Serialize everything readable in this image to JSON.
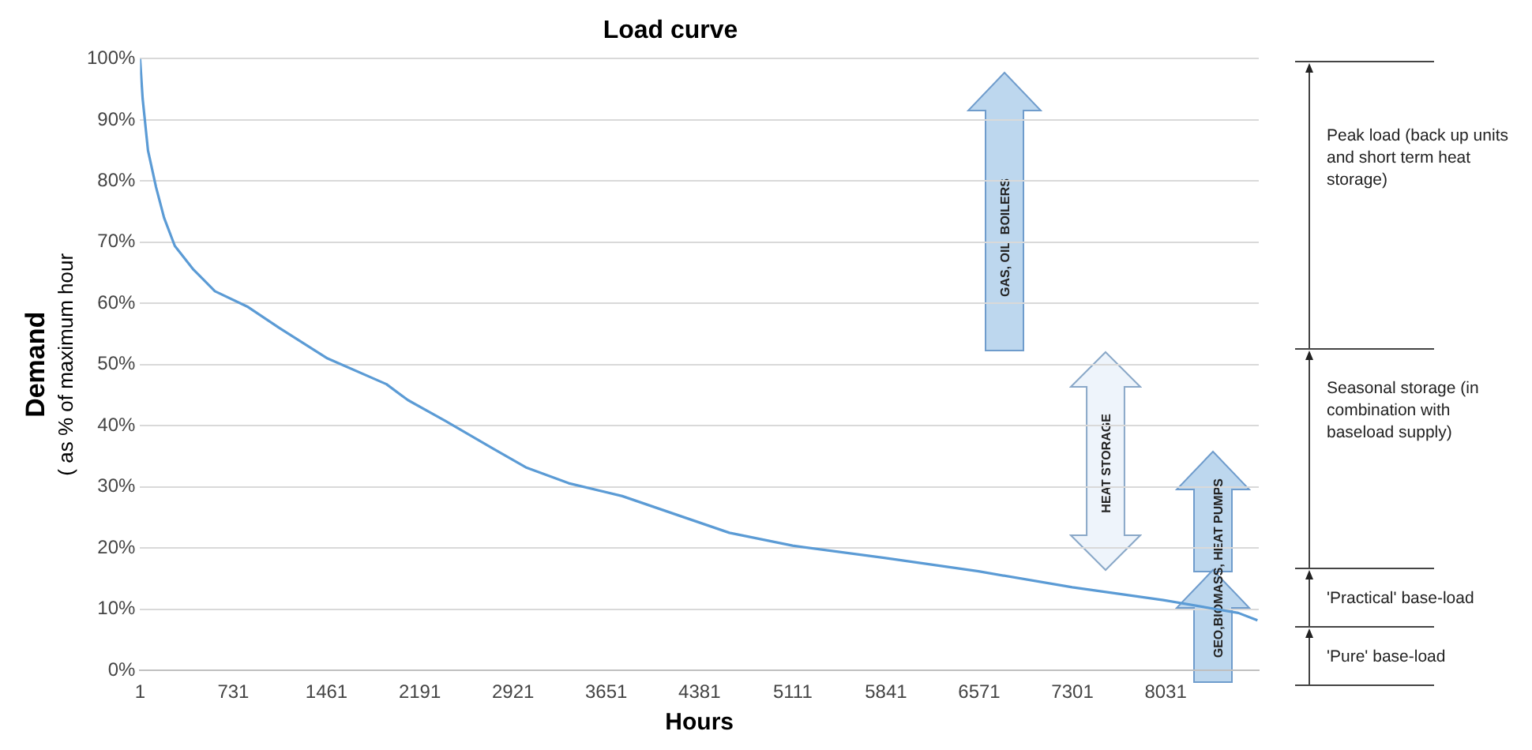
{
  "chart_data": {
    "type": "line",
    "title": "Load curve",
    "xlabel": "Hours",
    "ylabel": "Demand\n( as % of maximum hour",
    "x": [
      1,
      21,
      63,
      126,
      189,
      273,
      420,
      587,
      839,
      1091,
      1469,
      1930,
      2098,
      2391,
      2769,
      3021,
      3357,
      3776,
      4195,
      4615,
      5110,
      5828,
      6566,
      7300,
      8013,
      8600,
      8750
    ],
    "series": [
      {
        "color": "#5b9bd5",
        "values": [
          100,
          93.5,
          85,
          79,
          74,
          69.4,
          65.5,
          62,
          59.5,
          56,
          51,
          46.8,
          44.2,
          40.8,
          36.2,
          33.2,
          30.6,
          28.5,
          25.5,
          22.5,
          20.4,
          18.4,
          16.2,
          13.6,
          11.5,
          9.4,
          8.2
        ]
      }
    ],
    "xlim": [
      1,
      8760
    ],
    "xticks": [
      1,
      731,
      1461,
      2191,
      2921,
      3651,
      4381,
      5111,
      5841,
      6571,
      7301,
      8031
    ],
    "ylim": [
      0,
      100
    ],
    "yticks": [
      {
        "value": 0,
        "label": "0%"
      },
      {
        "value": 10,
        "label": "10%"
      },
      {
        "value": 20,
        "label": "20%"
      },
      {
        "value": 30,
        "label": "30%"
      },
      {
        "value": 40,
        "label": "40%"
      },
      {
        "value": 50,
        "label": "50%"
      },
      {
        "value": 60,
        "label": "60%"
      },
      {
        "value": 70,
        "label": "70%"
      },
      {
        "value": 80,
        "label": "80%"
      },
      {
        "value": 90,
        "label": "90%"
      },
      {
        "value": 100,
        "label": "100%"
      }
    ],
    "grid": "y",
    "legend": false,
    "marker": "none",
    "line_style": "solid",
    "annotations": [
      "GAS, OIL  BOILERS",
      "HEAT STORAGE",
      "GEO,BIOMASS, HEAT PUMPS",
      "Peak load (back up units and short term heat storage)",
      "Seasonal storage (in combination with baseload supply)",
      "'Practical' base-load",
      "'Pure' base-load"
    ]
  }
}
